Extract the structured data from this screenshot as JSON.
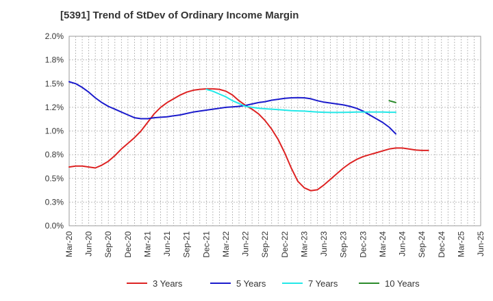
{
  "chart_data": {
    "type": "line",
    "title": "[5391]  Trend of StDev of Ordinary Income Margin",
    "xlabel": "",
    "ylabel": "",
    "ylim": [
      0.0,
      2.0
    ],
    "yticks": [
      "0.0%",
      "0.3%",
      "0.5%",
      "0.8%",
      "1.0%",
      "1.2%",
      "1.5%",
      "1.8%",
      "2.0%"
    ],
    "xticks": [
      "Mar-20",
      "Jun-20",
      "Sep-20",
      "Dec-20",
      "Mar-21",
      "Jun-21",
      "Sep-21",
      "Dec-21",
      "Mar-22",
      "Jun-22",
      "Sep-22",
      "Dec-22",
      "Mar-23",
      "Jun-23",
      "Sep-23",
      "Dec-23",
      "Mar-24",
      "Jun-24",
      "Sep-24",
      "Dec-24",
      "Mar-25",
      "Jun-25"
    ],
    "grid": true,
    "legend_position": "bottom",
    "series": [
      {
        "name": "3 Years",
        "color": "#dd2222",
        "x": [
          0,
          1,
          2,
          3,
          4,
          5,
          6,
          7,
          8,
          9,
          10,
          11,
          12,
          13,
          14,
          15,
          16,
          17,
          18,
          19,
          20,
          21,
          22,
          23,
          24,
          25,
          26,
          27,
          28,
          29,
          30,
          31,
          32,
          33,
          34,
          35,
          36,
          37,
          38,
          39,
          40,
          41,
          42,
          43,
          44,
          45,
          46,
          47,
          48,
          49,
          50,
          51,
          52,
          53,
          54,
          55,
          56,
          57,
          58,
          59,
          60
        ],
        "values": [
          0.62,
          0.63,
          0.63,
          0.62,
          0.61,
          0.64,
          0.68,
          0.74,
          0.81,
          0.87,
          0.93,
          1.0,
          1.09,
          1.18,
          1.25,
          1.3,
          1.34,
          1.38,
          1.41,
          1.43,
          1.44,
          1.445,
          1.445,
          1.44,
          1.42,
          1.38,
          1.32,
          1.27,
          1.23,
          1.18,
          1.11,
          1.02,
          0.91,
          0.77,
          0.61,
          0.47,
          0.4,
          0.37,
          0.38,
          0.43,
          0.49,
          0.55,
          0.61,
          0.66,
          0.7,
          0.73,
          0.75,
          0.77,
          0.79,
          0.81,
          0.82,
          0.82,
          0.81,
          0.8,
          0.795,
          0.795,
          null,
          null,
          null,
          null,
          null
        ]
      },
      {
        "name": "5 Years",
        "color": "#1a1acc",
        "x": [
          0,
          1,
          2,
          3,
          4,
          5,
          6,
          7,
          8,
          9,
          10,
          11,
          12,
          13,
          14,
          15,
          16,
          17,
          18,
          19,
          20,
          21,
          22,
          23,
          24,
          25,
          26,
          27,
          28,
          29,
          30,
          31,
          32,
          33,
          34,
          35,
          36,
          37,
          38,
          39,
          40,
          41,
          42,
          43,
          44,
          45,
          46,
          47,
          48,
          49,
          50,
          51,
          52,
          53,
          54,
          55,
          56,
          57,
          58,
          59,
          60
        ],
        "values": [
          1.52,
          1.5,
          1.46,
          1.41,
          1.35,
          1.3,
          1.26,
          1.23,
          1.2,
          1.17,
          1.14,
          1.13,
          1.13,
          1.14,
          1.145,
          1.15,
          1.16,
          1.17,
          1.185,
          1.2,
          1.21,
          1.22,
          1.23,
          1.24,
          1.25,
          1.255,
          1.26,
          1.27,
          1.285,
          1.3,
          1.31,
          1.325,
          1.335,
          1.345,
          1.35,
          1.352,
          1.35,
          1.34,
          1.32,
          1.305,
          1.295,
          1.285,
          1.275,
          1.26,
          1.24,
          1.21,
          1.17,
          1.13,
          1.09,
          1.04,
          0.97,
          null,
          null,
          null,
          null,
          null,
          null,
          null,
          null,
          null,
          null
        ]
      },
      {
        "name": "7 Years",
        "color": "#22e8e8",
        "x": [
          0,
          1,
          2,
          3,
          4,
          5,
          6,
          7,
          8,
          9,
          10,
          11,
          12,
          13,
          14,
          15,
          16,
          17,
          18,
          19,
          20,
          21,
          22,
          23,
          24,
          25,
          26,
          27,
          28,
          29,
          30,
          31,
          32,
          33,
          34,
          35,
          36,
          37,
          38,
          39,
          40,
          41,
          42,
          43,
          44,
          45,
          46,
          47,
          48,
          49,
          50,
          51,
          52,
          53,
          54,
          55,
          56,
          57,
          58,
          59,
          60
        ],
        "values": [
          null,
          null,
          null,
          null,
          null,
          null,
          null,
          null,
          null,
          null,
          null,
          null,
          null,
          null,
          null,
          null,
          null,
          null,
          null,
          null,
          null,
          1.44,
          1.42,
          1.39,
          1.36,
          1.32,
          1.29,
          1.26,
          1.25,
          1.24,
          1.235,
          1.23,
          1.225,
          1.22,
          1.215,
          1.212,
          1.21,
          1.205,
          1.2,
          1.198,
          1.196,
          1.196,
          1.197,
          1.198,
          1.2,
          1.2,
          1.2,
          1.2,
          1.2,
          1.198,
          1.198,
          null,
          null,
          null,
          null,
          null,
          null,
          null,
          null,
          null,
          null
        ]
      },
      {
        "name": "10 Years",
        "color": "#2a8a2a",
        "x": [
          0,
          1,
          2,
          3,
          4,
          5,
          6,
          7,
          8,
          9,
          10,
          11,
          12,
          13,
          14,
          15,
          16,
          17,
          18,
          19,
          20,
          21,
          22,
          23,
          24,
          25,
          26,
          27,
          28,
          29,
          30,
          31,
          32,
          33,
          34,
          35,
          36,
          37,
          38,
          39,
          40,
          41,
          42,
          43,
          44,
          45,
          46,
          47,
          48,
          49,
          50,
          51,
          52,
          53,
          54,
          55,
          56,
          57,
          58,
          59,
          60
        ],
        "values": [
          null,
          null,
          null,
          null,
          null,
          null,
          null,
          null,
          null,
          null,
          null,
          null,
          null,
          null,
          null,
          null,
          null,
          null,
          null,
          null,
          null,
          null,
          null,
          null,
          null,
          null,
          null,
          null,
          null,
          null,
          null,
          null,
          null,
          null,
          null,
          null,
          null,
          null,
          null,
          null,
          null,
          null,
          null,
          null,
          null,
          null,
          null,
          null,
          null,
          1.32,
          1.3,
          null,
          null,
          null,
          null,
          null,
          null,
          null,
          null,
          null,
          null
        ]
      }
    ]
  }
}
